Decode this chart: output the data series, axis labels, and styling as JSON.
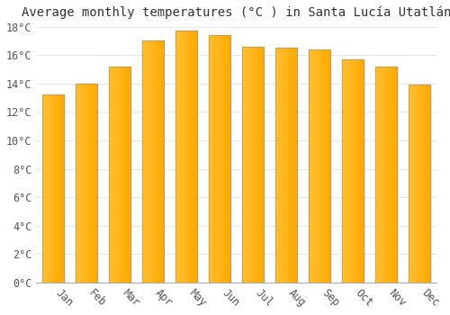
{
  "title": "Average monthly temperatures (°C ) in Santa Lucía Utatlán",
  "months": [
    "Jan",
    "Feb",
    "Mar",
    "Apr",
    "May",
    "Jun",
    "Jul",
    "Aug",
    "Sep",
    "Oct",
    "Nov",
    "Dec"
  ],
  "values": [
    13.2,
    14.0,
    15.2,
    17.0,
    17.7,
    17.4,
    16.6,
    16.5,
    16.4,
    15.7,
    15.2,
    13.9
  ],
  "bar_color_left": "#FFC033",
  "bar_color_right": "#FFAA00",
  "bar_color_edge": "#999999",
  "ylim": [
    0,
    18
  ],
  "yticks": [
    0,
    2,
    4,
    6,
    8,
    10,
    12,
    14,
    16,
    18
  ],
  "ytick_labels": [
    "0°C",
    "2°C",
    "4°C",
    "6°C",
    "8°C",
    "10°C",
    "12°C",
    "14°C",
    "16°C",
    "18°C"
  ],
  "background_color": "#ffffff",
  "grid_color": "#e8e8e8",
  "title_fontsize": 10,
  "tick_fontsize": 8.5,
  "xlabel_rotation": -45,
  "bar_width": 0.65
}
